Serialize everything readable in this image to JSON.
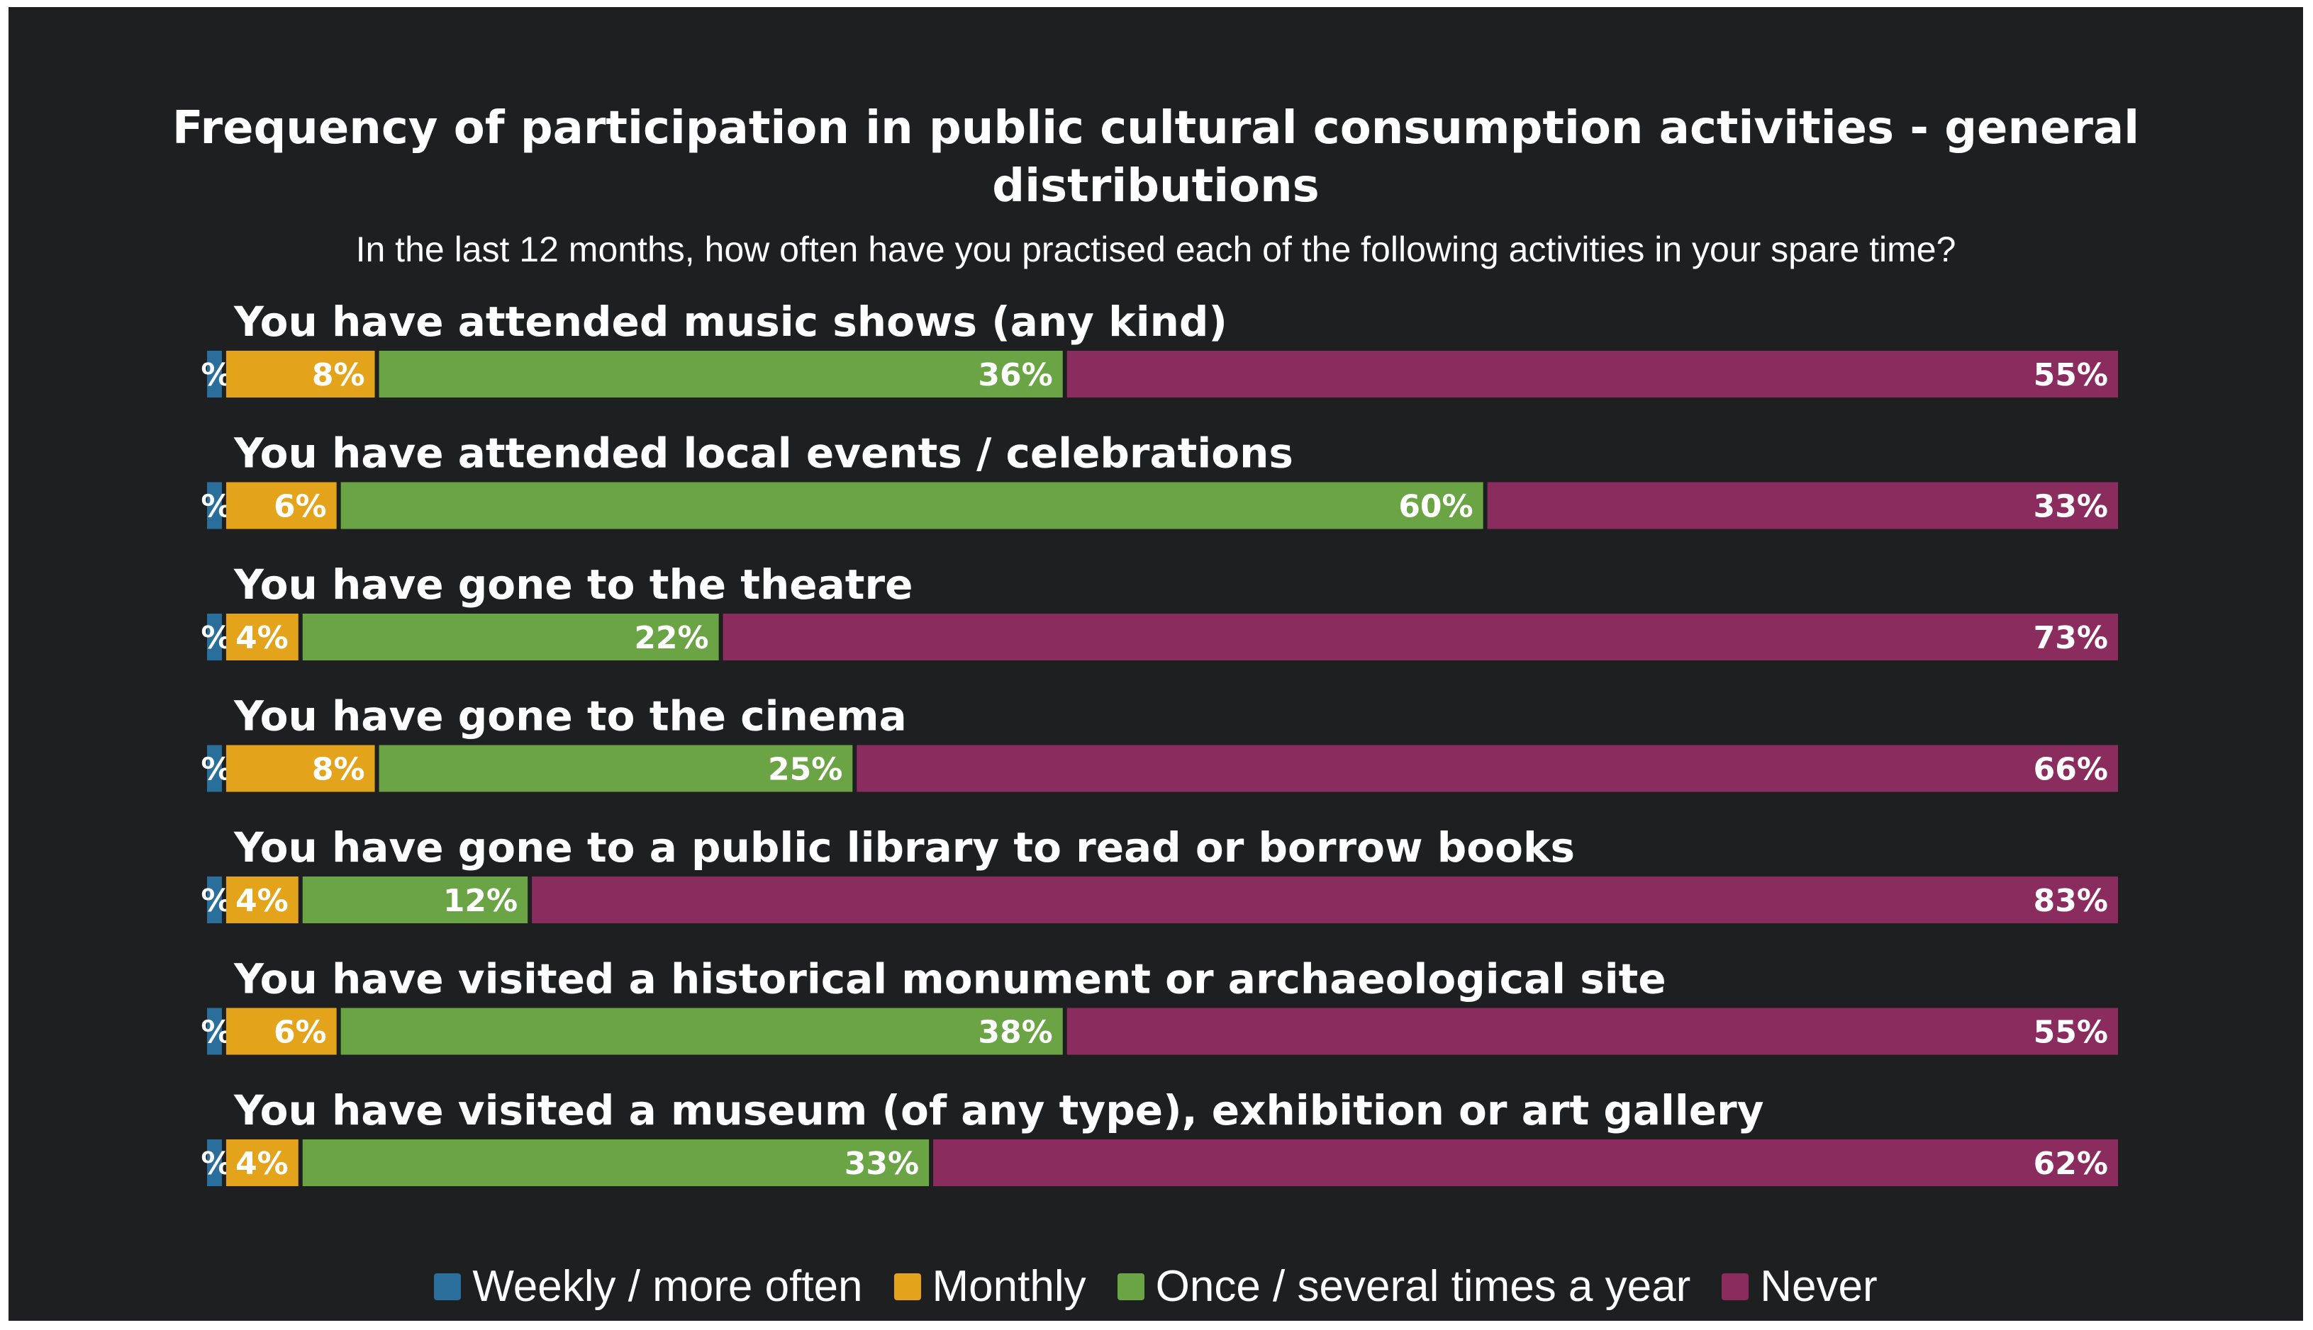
{
  "chart_data": {
    "type": "bar",
    "orientation": "horizontal",
    "stacked": true,
    "title": "Frequency of participation in public cultural consumption activities - general distributions",
    "subtitle": "In the last 12 months, how often have you practised each of the following activities in your spare time?",
    "categories": [
      "You have attended music shows (any kind)",
      "You have attended local events / celebrations",
      "You have gone to the theatre",
      "You have gone to the cinema",
      "You have gone to a public library to read or borrow books",
      "You have visited a historical monument or archaeological site",
      "You have visited a museum (of any type), exhibition or art gallery"
    ],
    "series": [
      {
        "name": "Weekly / more often",
        "color": "#2a6f9b",
        "values": [
          1,
          1,
          1,
          1,
          1,
          1,
          1
        ]
      },
      {
        "name": "Monthly",
        "color": "#e3a31a",
        "values": [
          8,
          6,
          4,
          8,
          4,
          6,
          4
        ]
      },
      {
        "name": "Once / several times a year",
        "color": "#6aa444",
        "values": [
          36,
          60,
          22,
          25,
          12,
          38,
          33
        ]
      },
      {
        "name": "Never",
        "color": "#8a2d5e",
        "values": [
          55,
          33,
          73,
          66,
          83,
          55,
          62
        ]
      }
    ],
    "legend_position": "bottom",
    "grid": false
  }
}
